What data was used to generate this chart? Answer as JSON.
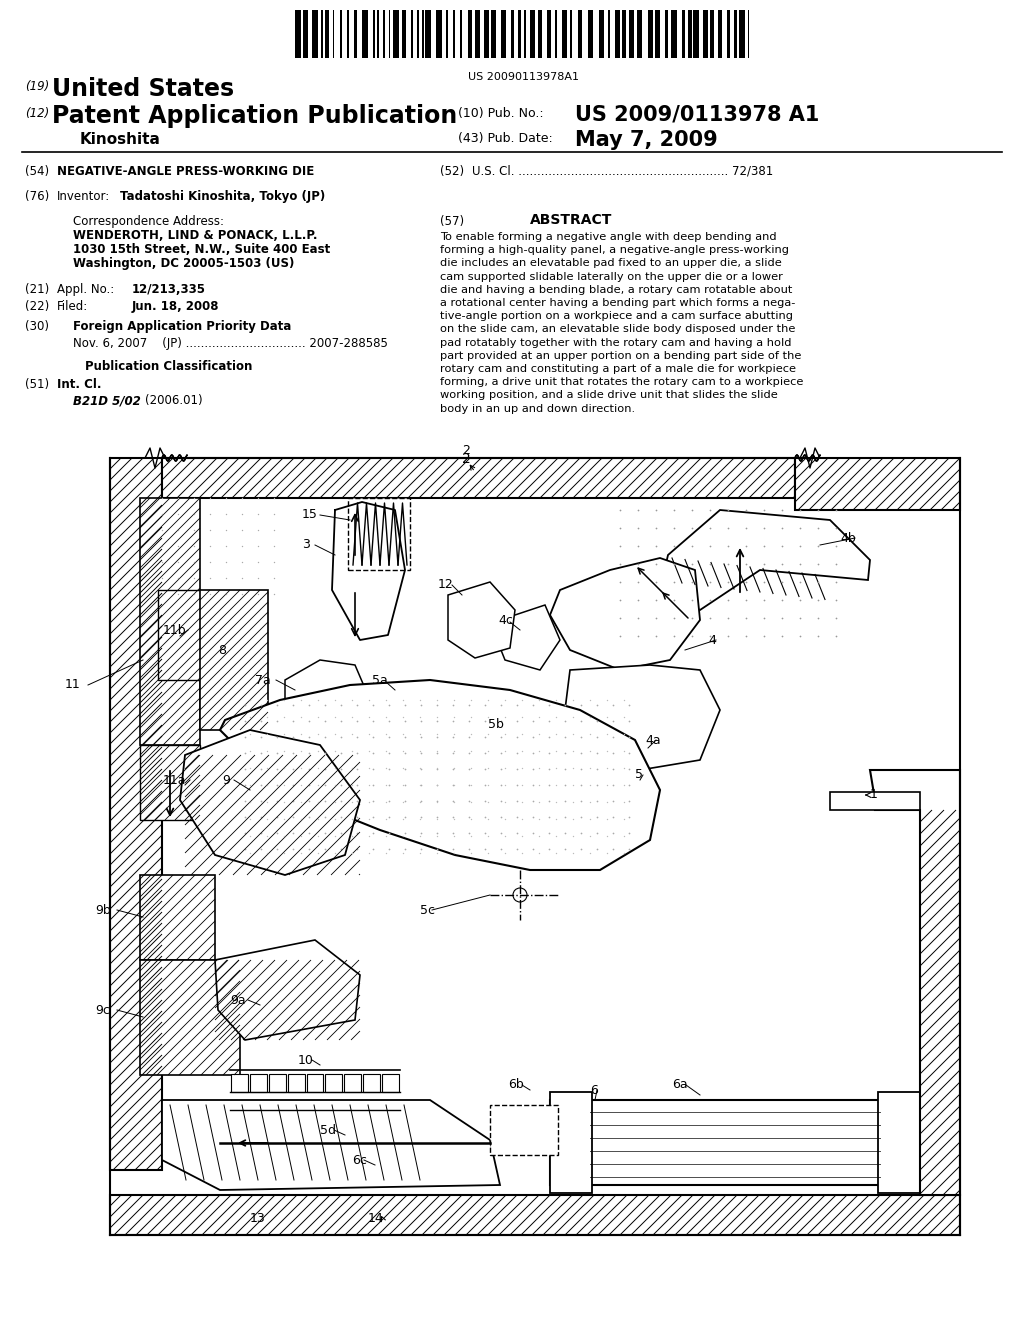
{
  "bg_color": "#ffffff",
  "barcode_text": "US 20090113978A1",
  "field54_text": "NEGATIVE-ANGLE PRESS-WORKING DIE",
  "field52_text": "U.S. Cl. ........................................................ 72/381",
  "field76_value": "Tadatoshi Kinoshita, Tokyo (JP)",
  "corr_address_label": "Correspondence Address:",
  "corr_line1": "WENDEROTH, LIND & PONACK, L.L.P.",
  "corr_line2": "1030 15th Street, N.W., Suite 400 East",
  "corr_line3": "Washington, DC 20005-1503 (US)",
  "field21_value": "12/213,335",
  "field22_value": "Jun. 18, 2008",
  "field30_text": "Foreign Application Priority Data",
  "foreign_line": "Nov. 6, 2007    (JP) ................................ 2007-288585",
  "pub_class_label": "Publication Classification",
  "field51_class": "B21D 5/02",
  "field51_year": "(2006.01)",
  "field57_title": "ABSTRACT",
  "abstract_lines": [
    "To enable forming a negative angle with deep bending and",
    "forming a high-quality panel, a negative-angle press-working",
    "die includes an elevatable pad fixed to an upper die, a slide",
    "cam supported slidable laterally on the upper die or a lower",
    "die and having a bending blade, a rotary cam rotatable about",
    "a rotational center having a bending part which forms a nega-",
    "tive-angle portion on a workpiece and a cam surface abutting",
    "on the slide cam, an elevatable slide body disposed under the",
    "pad rotatably together with the rotary cam and having a hold",
    "part provided at an upper portion on a bending part side of the",
    "rotary cam and constituting a part of a male die for workpiece",
    "forming, a drive unit that rotates the rotary cam to a workpiece",
    "working position, and a slide drive unit that slides the slide",
    "body in an up and down direction."
  ]
}
